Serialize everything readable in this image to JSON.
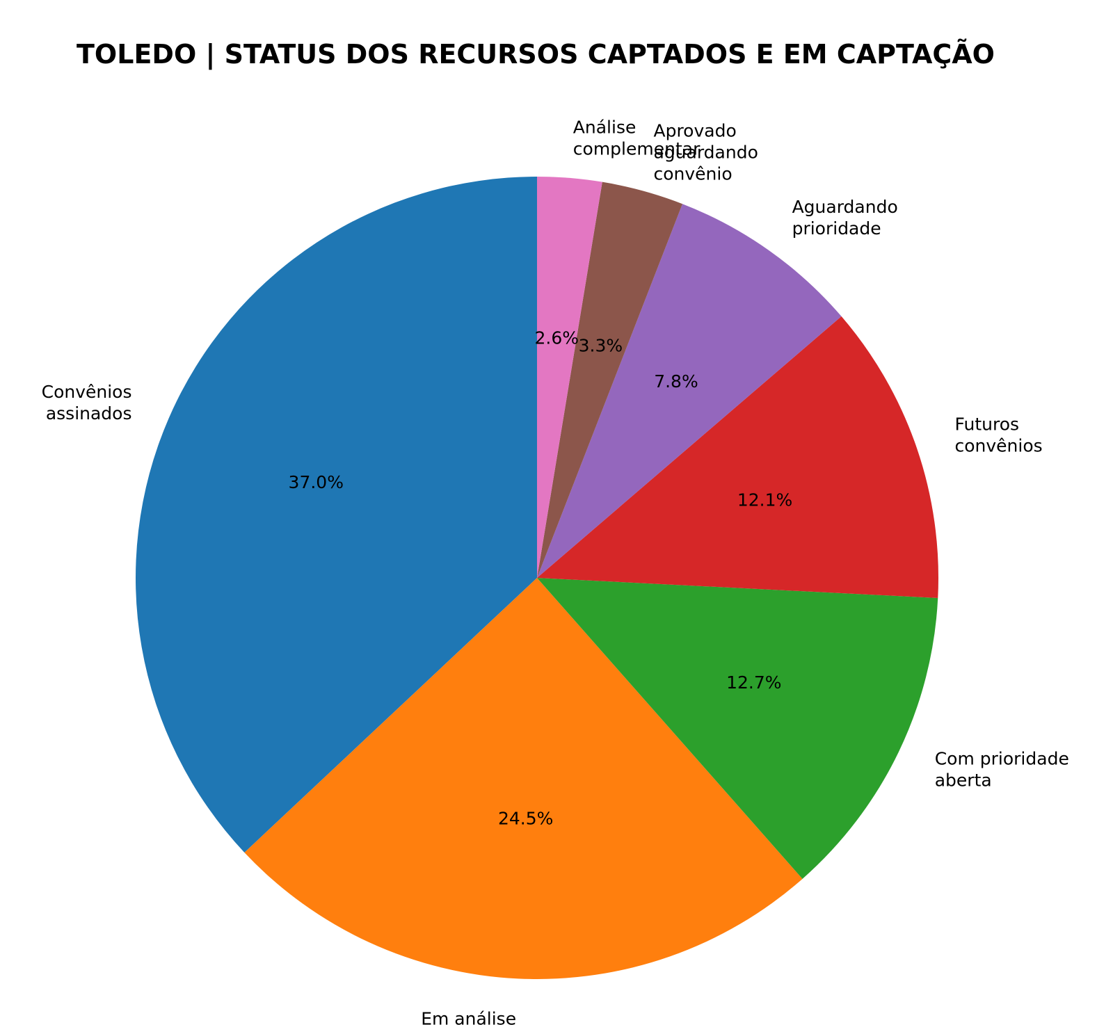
{
  "chart_data": {
    "type": "pie",
    "title": "TOLEDO | STATUS DOS RECURSOS CAPTADOS E EM CAPTAÇÃO",
    "start_angle_deg": 90,
    "direction": "counterclockwise",
    "slices": [
      {
        "label": "Convênios\nassinados",
        "value": 37.0,
        "pct_label": "37.0%",
        "color": "#1f77b4"
      },
      {
        "label": "Em análise",
        "value": 24.5,
        "pct_label": "24.5%",
        "color": "#ff7f0e"
      },
      {
        "label": "Com prioridade\naberta",
        "value": 12.7,
        "pct_label": "12.7%",
        "color": "#2ca02c"
      },
      {
        "label": "Futuros\nconvênios",
        "value": 12.1,
        "pct_label": "12.1%",
        "color": "#d62728"
      },
      {
        "label": "Aguardando\nprioridade",
        "value": 7.8,
        "pct_label": "7.8%",
        "color": "#9467bd"
      },
      {
        "label": "Aprovado\naguardando\nconvênio",
        "value": 3.3,
        "pct_label": "3.3%",
        "color": "#8c564b"
      },
      {
        "label": "Análise\ncomplementar",
        "value": 2.6,
        "pct_label": "2.6%",
        "color": "#e377c2"
      }
    ]
  }
}
